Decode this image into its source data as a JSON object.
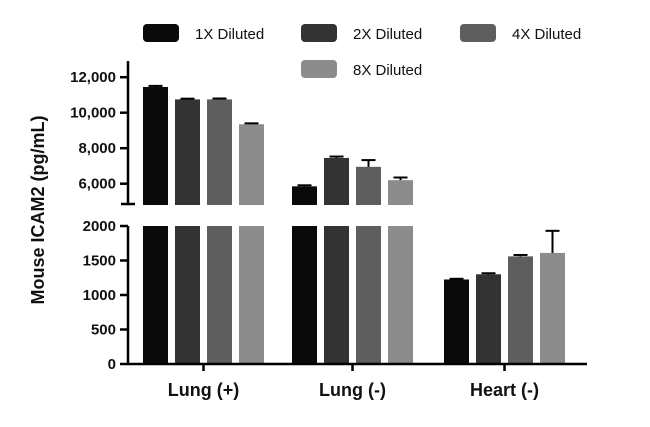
{
  "chart_data": {
    "type": "bar",
    "ylabel": "Mouse ICAM2 (pg/mL)",
    "xlabel": "",
    "categories": [
      "Lung (+)",
      "Lung (-)",
      "Heart (-)"
    ],
    "series": [
      {
        "name": "1X Diluted",
        "color": "#0a0a0a",
        "values": [
          11450,
          5850,
          1225
        ],
        "errors": [
          60,
          60,
          10
        ]
      },
      {
        "name": "2X Diluted",
        "color": "#333333",
        "values": [
          10750,
          7450,
          1300
        ],
        "errors": [
          40,
          80,
          15
        ]
      },
      {
        "name": "4X Diluted",
        "color": "#5e5e5e",
        "values": [
          10750,
          6950,
          1560
        ],
        "errors": [
          50,
          380,
          20
        ]
      },
      {
        "name": "8X Diluted",
        "color": "#8c8c8c",
        "values": [
          9350,
          6200,
          1610
        ],
        "errors": [
          50,
          150,
          320
        ]
      }
    ],
    "y_axis": {
      "lower_segment": {
        "range": [
          0,
          2000
        ],
        "ticks": [
          0,
          500,
          1000,
          1500,
          2000
        ],
        "tick_labels": [
          "0",
          "500",
          "1000",
          "1500",
          "2000"
        ]
      },
      "upper_segment": {
        "range": [
          4800,
          12800
        ],
        "ticks": [
          6000,
          8000,
          10000,
          12000
        ],
        "tick_labels": [
          "6,000",
          "8,000",
          "10,000",
          "12,000"
        ]
      }
    },
    "axis_break": true,
    "grid": false,
    "legend_position": "top"
  }
}
